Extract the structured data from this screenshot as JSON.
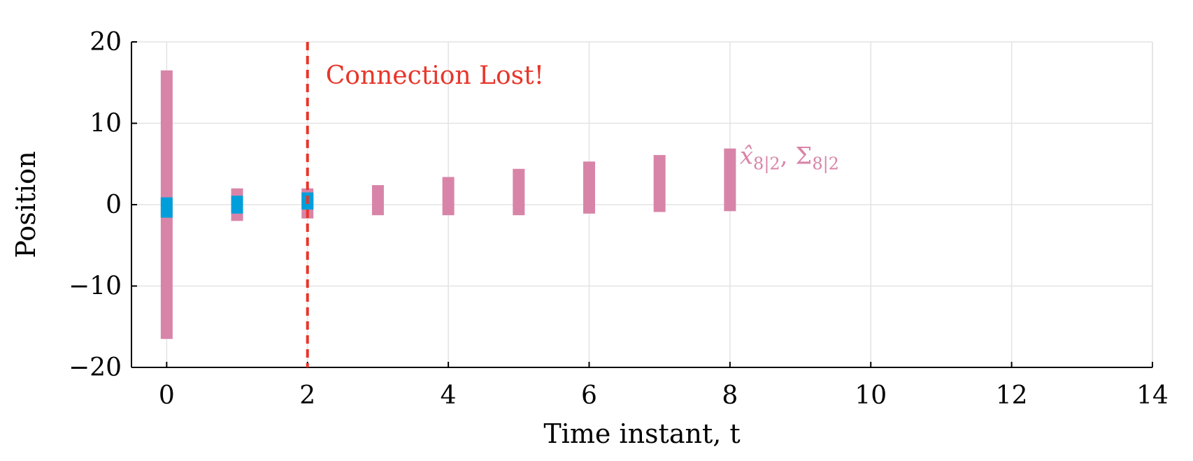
{
  "chart_data": {
    "type": "bar",
    "title": "",
    "xlabel": "Time instant, t",
    "ylabel": "Position",
    "xlim": [
      -0.5,
      14
    ],
    "ylim": [
      -20,
      20
    ],
    "x_ticks": [
      0,
      2,
      4,
      6,
      8,
      10,
      12,
      14
    ],
    "y_ticks": [
      -20,
      -10,
      0,
      10,
      20
    ],
    "x_tick_labels": [
      "0",
      "2",
      "4",
      "6",
      "8",
      "10",
      "12",
      "14"
    ],
    "y_tick_labels": [
      "−20",
      "−10",
      "0",
      "10",
      "20"
    ],
    "grid": true,
    "series": [
      {
        "color": "#d884a8",
        "intervals": [
          {
            "x": 0,
            "low": -16.5,
            "high": 16.5
          },
          {
            "x": 1,
            "low": -2.0,
            "high": 2.0
          },
          {
            "x": 2,
            "low": -1.7,
            "high": 2.0
          },
          {
            "x": 3,
            "low": -1.3,
            "high": 2.4
          },
          {
            "x": 4,
            "low": -1.3,
            "high": 3.4
          },
          {
            "x": 5,
            "low": -1.3,
            "high": 4.4
          },
          {
            "x": 6,
            "low": -1.1,
            "high": 5.3
          },
          {
            "x": 7,
            "low": -0.9,
            "high": 6.1
          },
          {
            "x": 8,
            "low": -0.8,
            "high": 6.9
          }
        ]
      },
      {
        "color": "#009fdb",
        "intervals": [
          {
            "x": 0,
            "low": -1.6,
            "high": 0.9
          },
          {
            "x": 1,
            "low": -1.1,
            "high": 1.1
          },
          {
            "x": 2,
            "low": -0.6,
            "high": 1.5
          }
        ]
      }
    ],
    "event_line": {
      "x": 2,
      "label": "Connection Lost!",
      "color": "#e8352a"
    },
    "estimate_label": {
      "text_main": "x̂",
      "sub1": "8|2",
      "sep": ", Σ",
      "sub2": "8|2",
      "color": "#d884a8"
    }
  }
}
